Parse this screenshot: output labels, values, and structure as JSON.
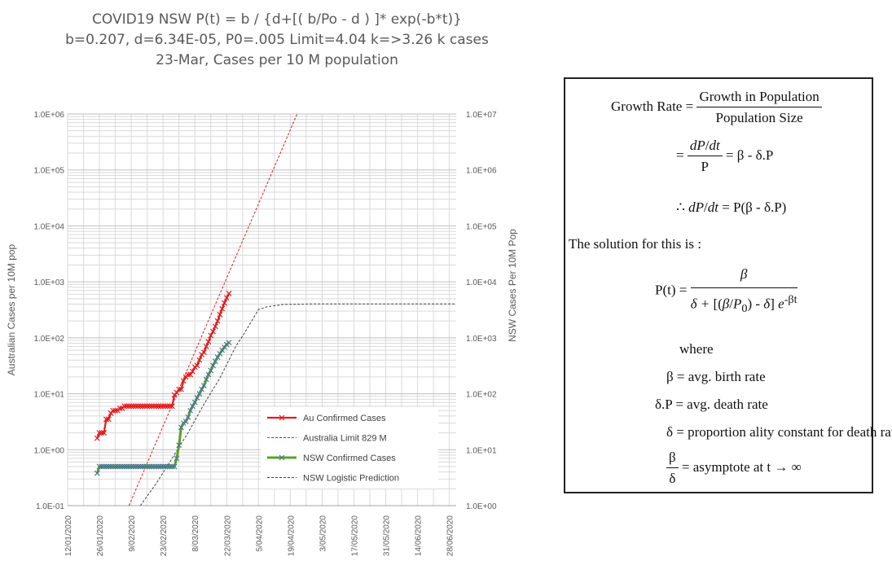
{
  "title": {
    "line1": "COVID19 NSW P(t) = b / {d+[( b/Po - d ) ]* exp(-b*t)}",
    "line2": "b=0.207, d=6.34E-05, P0=.005 Limit=4.04 k=>3.26 k cases",
    "line3": "23-Mar, Cases per 10 M population"
  },
  "colors": {
    "au": "#e41a1c",
    "nsw_line": "#5aa02c",
    "nsw_marker": "#4a7a8c",
    "pred": "#404040",
    "grid": "#d9d9d9"
  },
  "chart_data": {
    "type": "line",
    "xlabel": "",
    "ylabel": "Australian Cases per 10M pop",
    "y2label": "NSW Cases Per 10M Pop",
    "y_scale": "log",
    "ylim": [
      0.1,
      1000000
    ],
    "y2lim": [
      1,
      10000000
    ],
    "x_tick_labels": [
      "12/01/2020",
      "26/01/2020",
      "9/02/2020",
      "23/02/2020",
      "8/03/2020",
      "22/03/2020",
      "5/04/2020",
      "19/04/2020",
      "3/05/2020",
      "17/05/2020",
      "31/05/2020",
      "14/06/2020",
      "28/06/2020"
    ],
    "y_tick_labels": [
      "1.0E-01",
      "1.0E+00",
      "1.0E+01",
      "1.0E+02",
      "1.0E+03",
      "1.0E+04",
      "1.0E+05",
      "1.0E+06"
    ],
    "y2_tick_labels": [
      "1.0E+00",
      "1.0E+01",
      "1.0E+02",
      "1.0E+03",
      "1.0E+04",
      "1.0E+05",
      "1.0E+06",
      "1.0E+07"
    ],
    "legend": [
      "Au Confirmed Cases",
      "Australia Limit 829 M",
      "NSW Confirmed Cases",
      "NSW Logistic Prediction"
    ],
    "legend_position": "bottom-right",
    "series": [
      {
        "name": "Au Confirmed Cases",
        "axis": "left",
        "style": "solid-x",
        "x": [
          "2020-01-25",
          "2020-01-26",
          "2020-01-27",
          "2020-01-28",
          "2020-01-29",
          "2020-01-30",
          "2020-01-31",
          "2020-02-01",
          "2020-02-02",
          "2020-02-03",
          "2020-02-04",
          "2020-02-05",
          "2020-02-06",
          "2020-02-07",
          "2020-02-08",
          "2020-02-09",
          "2020-02-10",
          "2020-02-11",
          "2020-02-12",
          "2020-02-13",
          "2020-02-14",
          "2020-02-15",
          "2020-02-16",
          "2020-02-17",
          "2020-02-18",
          "2020-02-19",
          "2020-02-20",
          "2020-02-21",
          "2020-02-22",
          "2020-02-23",
          "2020-02-24",
          "2020-02-25",
          "2020-02-26",
          "2020-02-27",
          "2020-02-28",
          "2020-02-29",
          "2020-03-01",
          "2020-03-02",
          "2020-03-03",
          "2020-03-04",
          "2020-03-05",
          "2020-03-06",
          "2020-03-07",
          "2020-03-08",
          "2020-03-09",
          "2020-03-10",
          "2020-03-11",
          "2020-03-12",
          "2020-03-13",
          "2020-03-14",
          "2020-03-15",
          "2020-03-16",
          "2020-03-17",
          "2020-03-18",
          "2020-03-19",
          "2020-03-20",
          "2020-03-21",
          "2020-03-22",
          "2020-03-23"
        ],
        "values": [
          1.6,
          2.0,
          2.0,
          2.0,
          3.5,
          3.5,
          4.5,
          5.0,
          5.0,
          5.0,
          5.5,
          5.5,
          6.0,
          6.0,
          6.0,
          6.0,
          6.0,
          6.0,
          6.0,
          6.0,
          6.0,
          6.0,
          6.0,
          6.0,
          6.0,
          6.0,
          6.0,
          6.0,
          6.0,
          6.0,
          6.0,
          6.0,
          6.0,
          6.0,
          9.5,
          10.5,
          12,
          12,
          17,
          20,
          22,
          22,
          25,
          30,
          32,
          40,
          50,
          55,
          70,
          85,
          110,
          130,
          160,
          200,
          260,
          330,
          420,
          520,
          620
        ]
      },
      {
        "name": "Australia Limit 829 M",
        "axis": "left",
        "style": "dashed",
        "x": [
          "2020-02-08",
          "2020-04-22"
        ],
        "values": [
          0.1,
          1000000
        ]
      },
      {
        "name": "NSW Confirmed Cases",
        "axis": "right",
        "style": "solid-x",
        "x": [
          "2020-01-25",
          "2020-01-26",
          "2020-01-27",
          "2020-01-28",
          "2020-01-29",
          "2020-01-30",
          "2020-01-31",
          "2020-02-01",
          "2020-02-02",
          "2020-02-03",
          "2020-02-04",
          "2020-02-05",
          "2020-02-06",
          "2020-02-07",
          "2020-02-08",
          "2020-02-09",
          "2020-02-10",
          "2020-02-11",
          "2020-02-12",
          "2020-02-13",
          "2020-02-14",
          "2020-02-15",
          "2020-02-16",
          "2020-02-17",
          "2020-02-18",
          "2020-02-19",
          "2020-02-20",
          "2020-02-21",
          "2020-02-22",
          "2020-02-23",
          "2020-02-24",
          "2020-02-25",
          "2020-02-26",
          "2020-02-27",
          "2020-02-28",
          "2020-02-29",
          "2020-03-01",
          "2020-03-02",
          "2020-03-03",
          "2020-03-04",
          "2020-03-05",
          "2020-03-06",
          "2020-03-07",
          "2020-03-08",
          "2020-03-09",
          "2020-03-10",
          "2020-03-11",
          "2020-03-12",
          "2020-03-13",
          "2020-03-14",
          "2020-03-15",
          "2020-03-16",
          "2020-03-17",
          "2020-03-18",
          "2020-03-19",
          "2020-03-20",
          "2020-03-21",
          "2020-03-22",
          "2020-03-23"
        ],
        "values": [
          3.8,
          5,
          5,
          5,
          5,
          5,
          5,
          5,
          5,
          5,
          5,
          5,
          5,
          5,
          5,
          5,
          5,
          5,
          5,
          5,
          5,
          5,
          5,
          5,
          5,
          5,
          5,
          5,
          5,
          5,
          5,
          5,
          5,
          5,
          5,
          7,
          12,
          25,
          30,
          32,
          38,
          50,
          60,
          70,
          85,
          100,
          120,
          140,
          180,
          220,
          260,
          320,
          380,
          450,
          520,
          600,
          680,
          760,
          820
        ]
      },
      {
        "name": "NSW Logistic Prediction",
        "axis": "right",
        "style": "dashed",
        "x": [
          "2020-02-13",
          "2020-02-20",
          "2020-02-27",
          "2020-03-05",
          "2020-03-12",
          "2020-03-19",
          "2020-03-26",
          "2020-03-30",
          "2020-04-02",
          "2020-04-05",
          "2020-04-09",
          "2020-04-16",
          "2020-04-30",
          "2020-05-31",
          "2020-07-01"
        ],
        "values": [
          1.0,
          2.5,
          7,
          20,
          65,
          190,
          700,
          1250,
          2000,
          3200,
          3600,
          3950,
          4040,
          4040,
          4040
        ]
      }
    ]
  },
  "formula": {
    "growth_rate": "Growth Rate",
    "growth_in_population": "Growth in Population",
    "population_size": "Population Size",
    "dp": "dP",
    "dt": "dt",
    "p": "P",
    "beta_minus_delta_p": "= β - δ.P",
    "p_of_beta_delta": "= P(β - δ.P)",
    "therefore": "∴",
    "solution_text": "The solution for this is :",
    "p_of_t": "P(t) =",
    "beta": "β",
    "delta_plus": "δ +",
    "p0": "P",
    "p0_sub": "0",
    "minus_delta": "- δ",
    "exp": "e",
    "exp_sup": "-βt",
    "where": "where",
    "def_birth": "β = avg. birth rate",
    "def_death": "δ.P = avg. death rate",
    "def_delta": "δ = proportion ality constant for death rate",
    "delta": "δ",
    "asymptote": "= asymptote at t → ∞"
  }
}
